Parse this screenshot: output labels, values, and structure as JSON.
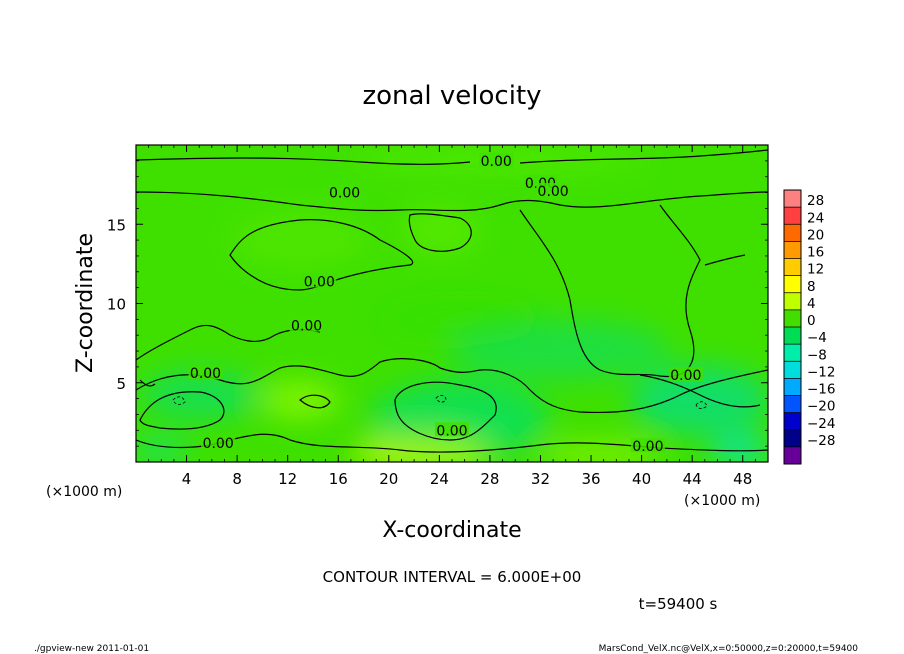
{
  "chart_data": {
    "type": "heatmap",
    "title": "zonal velocity",
    "xlabel": "X-coordinate",
    "ylabel": "Z-coordinate",
    "x_unit_label": "(×1000 m)",
    "y_unit_label": "(×1000 m)",
    "xlim": [
      0,
      50
    ],
    "ylim": [
      0,
      20
    ],
    "xticks": [
      "4",
      "8",
      "12",
      "16",
      "20",
      "24",
      "28",
      "32",
      "36",
      "40",
      "44",
      "48"
    ],
    "yticks": [
      "5",
      "10",
      "15"
    ],
    "colorbar": {
      "levels": [
        "28",
        "24",
        "20",
        "16",
        "12",
        "8",
        "4",
        "0",
        "−4",
        "−8",
        "−12",
        "−16",
        "−20",
        "−24",
        "−28"
      ],
      "colors": [
        "#ff8080",
        "#ff4040",
        "#ff6a00",
        "#ff9a00",
        "#ffcc00",
        "#ffff00",
        "#c0ff00",
        "#44dd00",
        "#00dd55",
        "#00eeaa",
        "#00dddd",
        "#00aaff",
        "#0055ff",
        "#0000cc",
        "#000088",
        "#660099"
      ]
    },
    "contour_labels": [
      {
        "text": "0.00",
        "x": 28.5,
        "z": 19.0
      },
      {
        "text": "0.00",
        "x": 16.5,
        "z": 17.0
      },
      {
        "text": "0.00",
        "x": 32.0,
        "z": 17.6
      },
      {
        "text": "0.00",
        "x": 33.0,
        "z": 17.1
      },
      {
        "text": "0.00",
        "x": 14.5,
        "z": 11.4
      },
      {
        "text": "0.00",
        "x": 13.5,
        "z": 8.6
      },
      {
        "text": "0.00",
        "x": 5.5,
        "z": 5.6
      },
      {
        "text": "0.00",
        "x": 25.0,
        "z": 2.0
      },
      {
        "text": "0.00",
        "x": 6.5,
        "z": 1.2
      },
      {
        "text": "0.00",
        "x": 40.5,
        "z": 1.0
      },
      {
        "text": "0.00",
        "x": 43.5,
        "z": 5.5
      }
    ],
    "contour_interval": "CONTOUR INTERVAL = 6.000E+00"
  },
  "annotations": {
    "time": "t=59400 s",
    "footer_left": "./gpview-new   2011-01-01",
    "footer_right": "MarsCond_VelX.nc@VelX,x=0:50000,z=0:20000,t=59400"
  }
}
